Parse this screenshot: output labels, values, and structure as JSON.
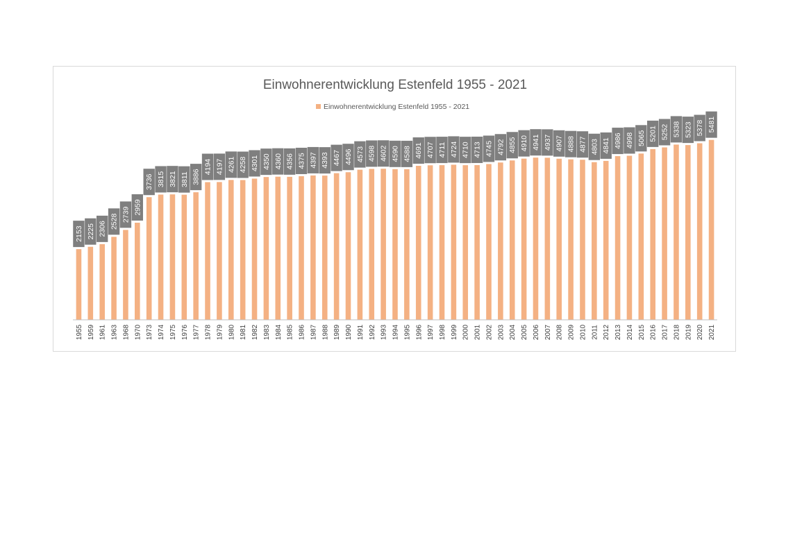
{
  "chart_data": {
    "type": "bar",
    "title": "Einwohnerentwicklung Estenfeld 1955 - 2021",
    "xlabel": "",
    "ylabel": "",
    "legend_position": "top-center",
    "grid": false,
    "bar_color": "#f4b183",
    "label_background_color": "#7f7f7f",
    "label_text_color": "#ffffff",
    "ylim": [
      0,
      5600
    ],
    "categories": [
      "1955",
      "1959",
      "1961",
      "1963",
      "1968",
      "1970",
      "1973",
      "1974",
      "1975",
      "1976",
      "1977",
      "1978",
      "1979",
      "1980",
      "1981",
      "1982",
      "1983",
      "1984",
      "1985",
      "1986",
      "1987",
      "1988",
      "1989",
      "1990",
      "1991",
      "1992",
      "1993",
      "1994",
      "1995",
      "1996",
      "1997",
      "1998",
      "1999",
      "2000",
      "2001",
      "2002",
      "2003",
      "2004",
      "2005",
      "2006",
      "2007",
      "2008",
      "2009",
      "2010",
      "2011",
      "2012",
      "2013",
      "2014",
      "2015",
      "2016",
      "2017",
      "2018",
      "2019",
      "2020",
      "2021"
    ],
    "series": [
      {
        "name": "Einwohnerentwicklung Estenfeld 1955 - 2021",
        "values": [
          2153,
          2225,
          2306,
          2528,
          2739,
          2959,
          3736,
          3815,
          3821,
          3811,
          3886,
          4194,
          4197,
          4261,
          4258,
          4301,
          4350,
          4360,
          4356,
          4375,
          4397,
          4393,
          4467,
          4496,
          4573,
          4598,
          4602,
          4590,
          4588,
          4691,
          4707,
          4711,
          4724,
          4710,
          4713,
          4745,
          4792,
          4855,
          4910,
          4941,
          4937,
          4907,
          4888,
          4877,
          4803,
          4841,
          4986,
          4998,
          5065,
          5201,
          5252,
          5338,
          5323,
          5378,
          5481
        ]
      }
    ]
  }
}
